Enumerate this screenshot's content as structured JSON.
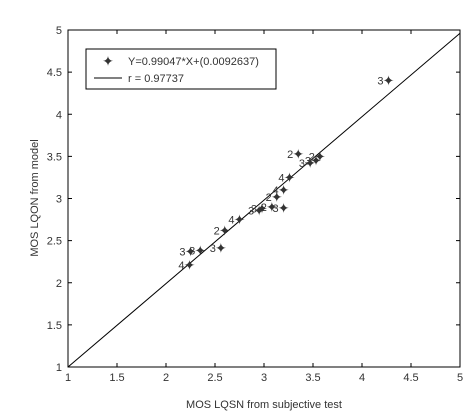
{
  "chart_data": {
    "type": "scatter",
    "xlabel": "MOS LQSN from subjective test",
    "ylabel": "MOS LQON from model",
    "xlim": [
      1,
      5
    ],
    "ylim": [
      1,
      5
    ],
    "xticks": [
      "1",
      "1.5",
      "2",
      "2.5",
      "3",
      "3.5",
      "4",
      "4.5",
      "5"
    ],
    "yticks": [
      "1",
      "1.5",
      "2",
      "2.5",
      "3",
      "3.5",
      "4",
      "4.5",
      "5"
    ],
    "grid": false,
    "legend_position": "top-left",
    "legend": [
      {
        "marker": "star",
        "label": "Y=0.99047*X+(0.0092637)"
      },
      {
        "marker": "line",
        "label": "r = 0.97737"
      }
    ],
    "fit_line": {
      "slope": 0.99047,
      "intercept": 0.0092637
    },
    "marker_color": "#1f2fd6",
    "line_color": "#000000",
    "points": [
      {
        "x": 4.27,
        "y": 4.4,
        "label": "3"
      },
      {
        "x": 3.35,
        "y": 3.53,
        "label": "2"
      },
      {
        "x": 3.47,
        "y": 3.42,
        "label": "3"
      },
      {
        "x": 3.53,
        "y": 3.45,
        "label": "3"
      },
      {
        "x": 3.57,
        "y": 3.5,
        "label": "2"
      },
      {
        "x": 3.26,
        "y": 3.25,
        "label": "4"
      },
      {
        "x": 3.2,
        "y": 3.1,
        "label": "4"
      },
      {
        "x": 3.13,
        "y": 3.02,
        "label": "2"
      },
      {
        "x": 3.08,
        "y": 2.9,
        "label": "2"
      },
      {
        "x": 3.2,
        "y": 2.89,
        "label": "3"
      },
      {
        "x": 2.98,
        "y": 2.88,
        "label": "3"
      },
      {
        "x": 2.95,
        "y": 2.86,
        "label": "3"
      },
      {
        "x": 2.75,
        "y": 2.75,
        "label": "4"
      },
      {
        "x": 2.6,
        "y": 2.62,
        "label": "2"
      },
      {
        "x": 2.56,
        "y": 2.41,
        "label": "3"
      },
      {
        "x": 2.35,
        "y": 2.38,
        "label": "3"
      },
      {
        "x": 2.25,
        "y": 2.37,
        "label": "3"
      },
      {
        "x": 2.24,
        "y": 2.21,
        "label": "4"
      }
    ]
  }
}
